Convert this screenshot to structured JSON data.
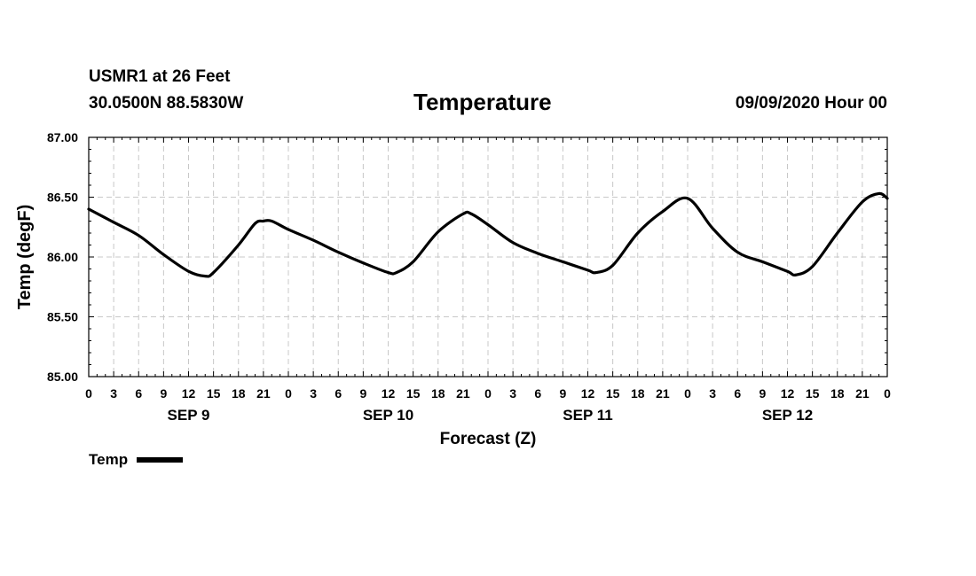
{
  "header": {
    "station_name": "USMR1 at 26 Feet",
    "station_coords": "30.0500N 88.5830W",
    "title": "Temperature",
    "run_time": "09/09/2020 Hour 00"
  },
  "legend": {
    "label": "Temp",
    "color": "#000000"
  },
  "chart_data": {
    "type": "line",
    "title": "Temperature",
    "xlabel": "Forecast (Z)",
    "ylabel": "Temp (degF)",
    "ylim": [
      85.0,
      87.0
    ],
    "yticks": [
      "85.00",
      "85.50",
      "86.00",
      "86.50",
      "87.00"
    ],
    "xlim": [
      0,
      96
    ],
    "xticks": [
      {
        "h": 0,
        "label": "0"
      },
      {
        "h": 3,
        "label": "3"
      },
      {
        "h": 6,
        "label": "6"
      },
      {
        "h": 9,
        "label": "9"
      },
      {
        "h": 12,
        "label": "12"
      },
      {
        "h": 15,
        "label": "15"
      },
      {
        "h": 18,
        "label": "18"
      },
      {
        "h": 21,
        "label": "21"
      },
      {
        "h": 24,
        "label": "0"
      },
      {
        "h": 27,
        "label": "3"
      },
      {
        "h": 30,
        "label": "6"
      },
      {
        "h": 33,
        "label": "9"
      },
      {
        "h": 36,
        "label": "12"
      },
      {
        "h": 39,
        "label": "15"
      },
      {
        "h": 42,
        "label": "18"
      },
      {
        "h": 45,
        "label": "21"
      },
      {
        "h": 48,
        "label": "0"
      },
      {
        "h": 51,
        "label": "3"
      },
      {
        "h": 54,
        "label": "6"
      },
      {
        "h": 57,
        "label": "9"
      },
      {
        "h": 60,
        "label": "12"
      },
      {
        "h": 63,
        "label": "15"
      },
      {
        "h": 66,
        "label": "18"
      },
      {
        "h": 69,
        "label": "21"
      },
      {
        "h": 72,
        "label": "0"
      },
      {
        "h": 75,
        "label": "3"
      },
      {
        "h": 78,
        "label": "6"
      },
      {
        "h": 81,
        "label": "9"
      },
      {
        "h": 84,
        "label": "12"
      },
      {
        "h": 87,
        "label": "15"
      },
      {
        "h": 90,
        "label": "18"
      },
      {
        "h": 93,
        "label": "21"
      },
      {
        "h": 96,
        "label": "0"
      }
    ],
    "day_labels": [
      {
        "h": 12,
        "label": "SEP 9"
      },
      {
        "h": 36,
        "label": "SEP 10"
      },
      {
        "h": 60,
        "label": "SEP 11"
      },
      {
        "h": 84,
        "label": "SEP 12"
      }
    ],
    "grid": true,
    "legend_position": "bottom-left",
    "series": [
      {
        "name": "Temp",
        "color": "#000000",
        "x": [
          0,
          3,
          6,
          9,
          12,
          14,
          15,
          18,
          20,
          21,
          22,
          24,
          27,
          30,
          33,
          36,
          37,
          39,
          42,
          45,
          46,
          48,
          51,
          54,
          57,
          60,
          61,
          63,
          66,
          69,
          72,
          75,
          78,
          81,
          84,
          85,
          87,
          90,
          93,
          95,
          96
        ],
        "y": [
          86.4,
          86.29,
          86.18,
          86.02,
          85.88,
          85.84,
          85.87,
          86.1,
          86.28,
          86.3,
          86.3,
          86.23,
          86.14,
          86.04,
          85.95,
          85.87,
          85.87,
          85.96,
          86.21,
          86.36,
          86.36,
          86.27,
          86.12,
          86.03,
          85.96,
          85.89,
          85.87,
          85.93,
          86.2,
          86.38,
          86.49,
          86.24,
          86.04,
          85.96,
          85.88,
          85.85,
          85.92,
          86.2,
          86.46,
          86.53,
          86.49
        ]
      }
    ]
  }
}
